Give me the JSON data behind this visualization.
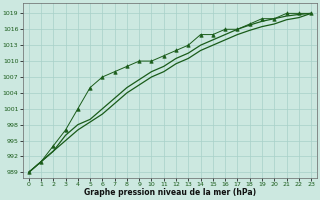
{
  "x": [
    0,
    1,
    2,
    3,
    4,
    5,
    6,
    7,
    8,
    9,
    10,
    11,
    12,
    13,
    14,
    15,
    16,
    17,
    18,
    19,
    20,
    21,
    22,
    23
  ],
  "y_jagged": [
    989,
    991,
    994,
    997,
    1001,
    1005,
    1007,
    1008,
    1009,
    1010,
    1010,
    1011,
    1012,
    1013,
    1015,
    1015,
    1016,
    1016,
    1017,
    1018,
    1018,
    1019,
    1019,
    1019
  ],
  "y_upper": [
    989,
    991,
    993,
    996,
    998,
    999,
    1001,
    1003,
    1005,
    1006.5,
    1008,
    1009,
    1010.5,
    1011.5,
    1013,
    1014,
    1015,
    1016,
    1016.8,
    1017.5,
    1018,
    1018.5,
    1018.8,
    1019
  ],
  "y_lower": [
    989,
    991,
    993,
    995,
    997,
    998.5,
    1000,
    1002,
    1004,
    1005.5,
    1007,
    1008,
    1009.5,
    1010.5,
    1012,
    1013,
    1014,
    1015,
    1015.8,
    1016.5,
    1017,
    1017.8,
    1018.2,
    1019
  ],
  "bg_color": "#cce8e0",
  "grid_color": "#a8d0c8",
  "line_color": "#1a5c1a",
  "xlabel": "Graphe pression niveau de la mer (hPa)",
  "ylim": [
    988,
    1021
  ],
  "yticks": [
    989,
    992,
    995,
    998,
    1001,
    1004,
    1007,
    1010,
    1013,
    1016,
    1019
  ],
  "xlim": [
    -0.5,
    23.5
  ],
  "xticks": [
    0,
    1,
    2,
    3,
    4,
    5,
    6,
    7,
    8,
    9,
    10,
    11,
    12,
    13,
    14,
    15,
    16,
    17,
    18,
    19,
    20,
    21,
    22,
    23
  ]
}
